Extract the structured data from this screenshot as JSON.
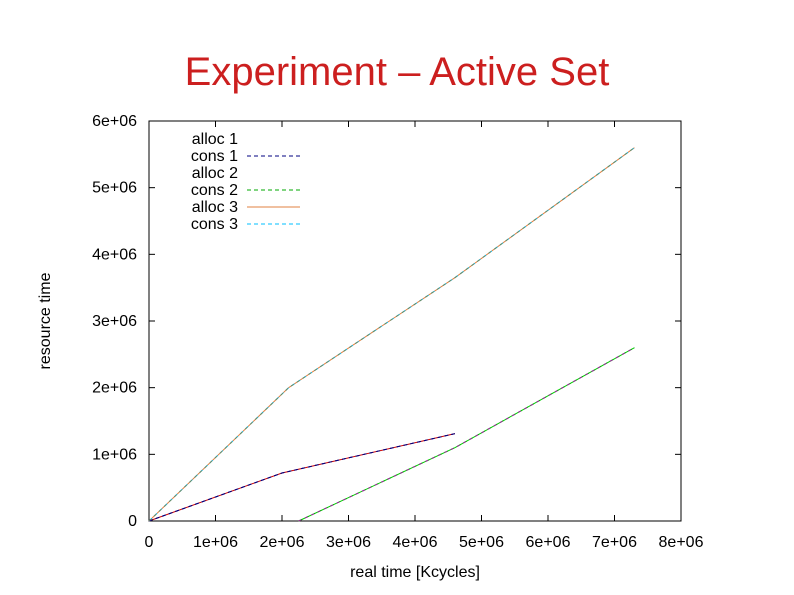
{
  "slide": {
    "title": "Experiment – Active Set"
  },
  "colors": {
    "title": "#cc1f1f",
    "axis": "#000000"
  },
  "chart_data": {
    "type": "line",
    "title": "",
    "xlabel": "real time [Kcycles]",
    "ylabel": "resource time",
    "xlim": [
      0,
      8000000
    ],
    "ylim": [
      0,
      6000000
    ],
    "xticks": [
      0,
      1000000,
      2000000,
      3000000,
      4000000,
      5000000,
      6000000,
      7000000,
      8000000
    ],
    "xtick_labels": [
      "0",
      "1e+06",
      "2e+06",
      "3e+06",
      "4e+06",
      "5e+06",
      "6e+06",
      "7e+06",
      "8e+06"
    ],
    "yticks": [
      0,
      1000000,
      2000000,
      3000000,
      4000000,
      5000000,
      6000000
    ],
    "ytick_labels": [
      "0",
      "1e+06",
      "2e+06",
      "3e+06",
      "4e+06",
      "5e+06",
      "6e+06"
    ],
    "grid": false,
    "legend_position": "top-left",
    "series": [
      {
        "name": "alloc 1",
        "color": "#cc0000",
        "dash": "solid",
        "x": [
          0,
          2000000,
          4600000
        ],
        "y": [
          0,
          720000,
          1310000
        ]
      },
      {
        "name": "cons 1",
        "color": "#000080",
        "dash": "dashed",
        "x": [
          0,
          2000000,
          4600000
        ],
        "y": [
          0,
          720000,
          1310000
        ]
      },
      {
        "name": "alloc 2",
        "color": "#00cc00",
        "dash": "solid",
        "x": [
          2250000,
          4600000,
          7300000
        ],
        "y": [
          0,
          1100000,
          2600000
        ]
      },
      {
        "name": "cons 2",
        "color": "#00aa00",
        "dash": "dashed",
        "x": [
          2250000,
          4600000,
          7300000
        ],
        "y": [
          0,
          1100000,
          2600000
        ]
      },
      {
        "name": "alloc 3",
        "color": "#e08040",
        "dash": "solid",
        "x": [
          0,
          2100000,
          4600000,
          7300000
        ],
        "y": [
          0,
          2000000,
          3650000,
          5600000
        ]
      },
      {
        "name": "cons 3",
        "color": "#00bfff",
        "dash": "dashed",
        "x": [
          0,
          2100000,
          4600000,
          7300000
        ],
        "y": [
          0,
          2000000,
          3650000,
          5600000
        ]
      }
    ],
    "overlay": [
      {
        "color": "#000080",
        "x": [
          0,
          2000000,
          4600000
        ],
        "y": [
          0,
          720000,
          1310000
        ]
      },
      {
        "color": "#cc00cc",
        "x": [
          2250000,
          4600000,
          7300000
        ],
        "y": [
          0,
          1100000,
          2600000
        ]
      },
      {
        "color": "#808040",
        "x": [
          0,
          2100000,
          4600000,
          7300000
        ],
        "y": [
          0,
          2000000,
          3650000,
          5600000
        ]
      }
    ]
  }
}
